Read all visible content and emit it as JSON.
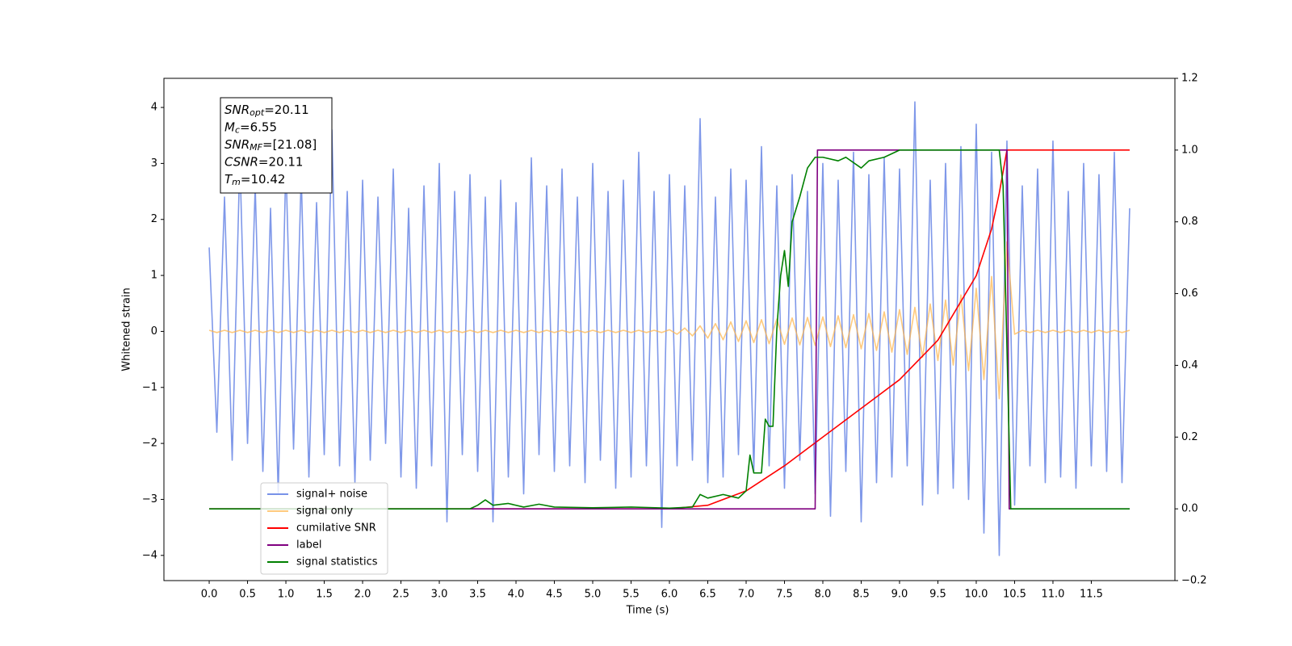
{
  "chart_data": {
    "type": "line",
    "xlabel": "Time (s)",
    "ylabel": "Whitened strain",
    "xlim": [
      -0.59,
      12.59
    ],
    "ylim": [
      -4.45,
      4.52
    ],
    "y2lim": [
      -0.2,
      1.2
    ],
    "xticks": [
      {
        "value": 0,
        "label": "0.0"
      },
      {
        "value": 0.5,
        "label": "0.5"
      },
      {
        "value": 1,
        "label": "1.0"
      },
      {
        "value": 1.5,
        "label": "1.5"
      },
      {
        "value": 2,
        "label": "2.0"
      },
      {
        "value": 2.5,
        "label": "2.5"
      },
      {
        "value": 3,
        "label": "3.0"
      },
      {
        "value": 3.5,
        "label": "3.5"
      },
      {
        "value": 4,
        "label": "4.0"
      },
      {
        "value": 4.5,
        "label": "4.5"
      },
      {
        "value": 5,
        "label": "5.0"
      },
      {
        "value": 5.5,
        "label": "5.5"
      },
      {
        "value": 6,
        "label": "6.0"
      },
      {
        "value": 6.5,
        "label": "6.5"
      },
      {
        "value": 7,
        "label": "7.0"
      },
      {
        "value": 7.5,
        "label": "7.5"
      },
      {
        "value": 8,
        "label": "8.0"
      },
      {
        "value": 8.5,
        "label": "8.5"
      },
      {
        "value": 9,
        "label": "9.0"
      },
      {
        "value": 9.5,
        "label": "9.5"
      },
      {
        "value": 10,
        "label": "10.0"
      },
      {
        "value": 10.5,
        "label": "10.5"
      },
      {
        "value": 11,
        "label": "11.0"
      },
      {
        "value": 11.5,
        "label": "11.5"
      }
    ],
    "yticks": [
      {
        "value": -4,
        "label": "−4"
      },
      {
        "value": -3,
        "label": "−3"
      },
      {
        "value": -2,
        "label": "−2"
      },
      {
        "value": -1,
        "label": "−1"
      },
      0,
      1,
      2,
      3,
      4
    ],
    "y2ticks": [
      {
        "value": -0.2,
        "label": "−0.2"
      },
      {
        "value": 0,
        "label": "0.0"
      },
      {
        "value": 0.2,
        "label": "0.2"
      },
      {
        "value": 0.4,
        "label": "0.4"
      },
      {
        "value": 0.6,
        "label": "0.6"
      },
      {
        "value": 0.8,
        "label": "0.8"
      },
      {
        "value": 1,
        "label": "1.0"
      },
      {
        "value": 1.2,
        "label": "1.2"
      }
    ],
    "legend": "lower left",
    "annotation": [
      {
        "main": "SNR",
        "sub": "opt",
        "rest": "=20.11"
      },
      {
        "main": "M",
        "sub": "c",
        "rest": "=6.55"
      },
      {
        "main": "SNR",
        "sub": "MF",
        "rest": "=[21.08]"
      },
      {
        "main": "CSNR",
        "sub": null,
        "rest": "=20.11"
      },
      {
        "main": "T",
        "sub": "m",
        "rest": "=10.42"
      }
    ],
    "x": [
      0,
      0.1,
      0.2,
      0.3,
      0.4,
      0.5,
      0.6,
      0.7,
      0.8,
      0.9,
      1,
      1.1,
      1.2,
      1.3,
      1.4,
      1.5,
      1.6,
      1.7,
      1.8,
      1.9,
      2,
      2.1,
      2.2,
      2.3,
      2.4,
      2.5,
      2.6,
      2.7,
      2.8,
      2.9,
      3,
      3.1,
      3.2,
      3.3,
      3.4,
      3.5,
      3.6,
      3.7,
      3.8,
      3.9,
      4,
      4.1,
      4.2,
      4.3,
      4.4,
      4.5,
      4.6,
      4.7,
      4.8,
      4.9,
      5,
      5.1,
      5.2,
      5.3,
      5.4,
      5.5,
      5.6,
      5.7,
      5.8,
      5.9,
      6,
      6.1,
      6.2,
      6.3,
      6.4,
      6.5,
      6.6,
      6.7,
      6.8,
      6.9,
      7,
      7.1,
      7.2,
      7.3,
      7.4,
      7.5,
      7.6,
      7.7,
      7.8,
      7.9,
      8,
      8.1,
      8.2,
      8.3,
      8.4,
      8.5,
      8.6,
      8.7,
      8.8,
      8.9,
      9,
      9.1,
      9.2,
      9.3,
      9.4,
      9.5,
      9.6,
      9.7,
      9.8,
      9.9,
      10,
      10.1,
      10.2,
      10.3,
      10.4,
      10.5,
      10.6,
      10.7,
      10.8,
      10.9,
      11,
      11.1,
      11.2,
      11.3,
      11.4,
      11.5,
      11.6,
      11.7,
      11.8,
      11.9,
      12
    ],
    "series": [
      {
        "name": "signal+ noise",
        "color": "#7892e8",
        "values": [
          1.5,
          -1.8,
          2.4,
          -2.3,
          3.1,
          -2.0,
          2.6,
          -2.5,
          2.2,
          -2.9,
          3.0,
          -2.1,
          2.8,
          -2.6,
          2.3,
          -2.2,
          3.6,
          -2.4,
          2.5,
          -2.7,
          2.7,
          -2.3,
          2.4,
          -2.0,
          2.9,
          -2.6,
          2.2,
          -2.8,
          2.6,
          -2.4,
          3.0,
          -3.4,
          2.5,
          -2.2,
          2.8,
          -2.5,
          2.4,
          -3.4,
          2.7,
          -2.6,
          2.3,
          -2.9,
          3.1,
          -2.2,
          2.6,
          -2.5,
          2.9,
          -2.4,
          2.4,
          -2.7,
          3.0,
          -2.3,
          2.5,
          -2.8,
          2.7,
          -2.6,
          3.2,
          -2.4,
          2.5,
          -3.5,
          2.8,
          -2.4,
          2.6,
          -2.3,
          3.8,
          -2.7,
          2.4,
          -2.6,
          2.9,
          -2.2,
          2.7,
          -2.5,
          3.3,
          -2.4,
          2.6,
          -2.8,
          2.8,
          -2.3,
          2.5,
          -2.9,
          3.0,
          -3.3,
          2.7,
          -2.5,
          3.2,
          -3.4,
          2.8,
          -2.7,
          3.1,
          -2.6,
          2.9,
          -2.4,
          4.1,
          -3.1,
          2.7,
          -2.9,
          3.0,
          -2.8,
          3.3,
          -3.0,
          3.7,
          -3.6,
          3.2,
          -4.0,
          3.4,
          -3.1,
          2.6,
          -2.4,
          2.9,
          -2.7,
          3.4,
          -2.6,
          2.5,
          -2.8,
          3.0,
          -2.4,
          2.8,
          -2.5,
          3.2,
          -2.7,
          2.2
        ]
      },
      {
        "name": "signal only",
        "color": "#ffb347",
        "values": [
          0.02,
          -0.02,
          0.02,
          -0.02,
          0.02,
          -0.02,
          0.02,
          -0.02,
          0.02,
          -0.02,
          0.02,
          -0.02,
          0.02,
          -0.02,
          0.02,
          -0.02,
          0.02,
          -0.02,
          0.02,
          -0.02,
          0.02,
          -0.02,
          0.02,
          -0.02,
          0.02,
          -0.02,
          0.02,
          -0.02,
          0.02,
          -0.02,
          0.02,
          -0.02,
          0.02,
          -0.02,
          0.02,
          -0.02,
          0.02,
          -0.02,
          0.02,
          -0.02,
          0.02,
          -0.02,
          0.02,
          -0.02,
          0.02,
          -0.02,
          0.02,
          -0.02,
          0.02,
          -0.02,
          0.02,
          -0.02,
          0.02,
          -0.02,
          0.02,
          -0.02,
          0.02,
          -0.02,
          0.02,
          -0.02,
          0.03,
          -0.05,
          0.06,
          -0.08,
          0.1,
          -0.12,
          0.14,
          -0.15,
          0.17,
          -0.18,
          0.19,
          -0.2,
          0.21,
          -0.22,
          0.22,
          -0.23,
          0.24,
          -0.24,
          0.25,
          -0.25,
          0.26,
          -0.27,
          0.28,
          -0.29,
          0.3,
          -0.31,
          0.32,
          -0.34,
          0.35,
          -0.37,
          0.39,
          -0.41,
          0.43,
          -0.46,
          0.49,
          -0.52,
          0.56,
          -0.6,
          0.65,
          -0.7,
          0.77,
          -0.86,
          0.98,
          -1.2,
          1.6,
          -0.05,
          0.02,
          -0.02,
          0.02,
          -0.02,
          0.02,
          -0.02,
          0.02,
          -0.02,
          0.02,
          -0.02,
          0.02,
          -0.02,
          0.02,
          -0.02,
          0.02
        ]
      },
      {
        "name": "cumilative SNR",
        "color": "#ff0000",
        "axis": "y2",
        "x": [
          0,
          6,
          6.5,
          7,
          7.5,
          8,
          8.5,
          9,
          9.5,
          10,
          10.2,
          10.3,
          10.4,
          12
        ],
        "values": [
          0,
          0,
          0.01,
          0.05,
          0.12,
          0.2,
          0.28,
          0.36,
          0.47,
          0.65,
          0.78,
          0.88,
          1,
          1
        ]
      },
      {
        "name": "label",
        "color": "#800080",
        "axis": "y2",
        "x": [
          0,
          7.9,
          7.93,
          10.4,
          10.43,
          12
        ],
        "values": [
          0,
          0,
          1,
          1,
          0,
          0
        ]
      },
      {
        "name": "signal statistics",
        "color": "#008000",
        "axis": "y2",
        "x": [
          0,
          3.4,
          3.5,
          3.6,
          3.7,
          3.9,
          4.1,
          4.3,
          4.5,
          5,
          5.5,
          6,
          6.3,
          6.4,
          6.5,
          6.7,
          6.9,
          7,
          7.05,
          7.1,
          7.2,
          7.25,
          7.3,
          7.35,
          7.4,
          7.45,
          7.5,
          7.55,
          7.6,
          7.7,
          7.8,
          7.9,
          8,
          8.2,
          8.3,
          8.5,
          8.6,
          8.8,
          9,
          9.5,
          10.3,
          10.35,
          10.45,
          12
        ],
        "values": [
          0,
          0,
          0.01,
          0.025,
          0.01,
          0.015,
          0.005,
          0.013,
          0.005,
          0.003,
          0.005,
          0.002,
          0.005,
          0.04,
          0.03,
          0.04,
          0.03,
          0.05,
          0.15,
          0.1,
          0.1,
          0.25,
          0.23,
          0.23,
          0.5,
          0.65,
          0.72,
          0.62,
          0.8,
          0.87,
          0.95,
          0.98,
          0.98,
          0.97,
          0.98,
          0.95,
          0.97,
          0.98,
          1,
          1,
          1,
          0.9,
          0,
          0
        ]
      }
    ]
  }
}
